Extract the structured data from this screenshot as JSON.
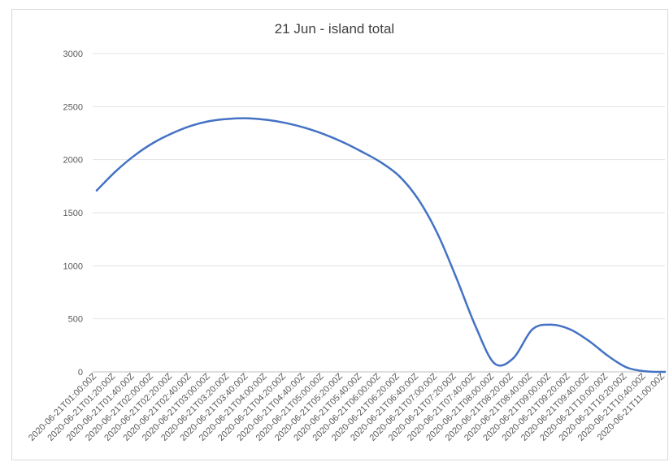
{
  "chart_data": {
    "type": "line",
    "title": "21 Jun - island total",
    "xlabel": "",
    "ylabel": "",
    "ylim": [
      0,
      3000
    ],
    "yticks": [
      0,
      500,
      1000,
      1500,
      2000,
      2500,
      3000
    ],
    "grid": "horizontal",
    "legend": "none",
    "x": [
      "2020-06-21T01:00:00Z",
      "2020-06-21T01:20:00Z",
      "2020-06-21T01:40:00Z",
      "2020-06-21T02:00:00Z",
      "2020-06-21T02:20:00Z",
      "2020-06-21T02:40:00Z",
      "2020-06-21T03:00:00Z",
      "2020-06-21T03:20:00Z",
      "2020-06-21T03:40:00Z",
      "2020-06-21T04:00:00Z",
      "2020-06-21T04:20:00Z",
      "2020-06-21T04:40:00Z",
      "2020-06-21T05:00:00Z",
      "2020-06-21T05:20:00Z",
      "2020-06-21T05:40:00Z",
      "2020-06-21T06:00:00Z",
      "2020-06-21T06:20:00Z",
      "2020-06-21T06:40:00Z",
      "2020-06-21T07:00:00Z",
      "2020-06-21T07:20:00Z",
      "2020-06-21T07:40:00Z",
      "2020-06-21T08:00:00Z",
      "2020-06-21T08:20:00Z",
      "2020-06-21T08:40:00Z",
      "2020-06-21T09:00:00Z",
      "2020-06-21T09:20:00Z",
      "2020-06-21T09:40:00Z",
      "2020-06-21T10:00:00Z",
      "2020-06-21T10:20:00Z",
      "2020-06-21T10:40:00Z",
      "2020-06-21T11:00:00Z"
    ],
    "xtick_labels": [
      "2020-06-21T01:00:00Z",
      "2020-06-21T01:20:00Z",
      "2020-06-21T01:40:00Z",
      "2020-06-21T02:00:00Z",
      "2020-06-21T02:20:00Z",
      "2020-06-21T02:40:00Z",
      "2020-06-21T03:00:00Z",
      "2020-06-21T03:20:00Z",
      "2020-06-21T03:40:00Z",
      "2020-06-21T04:00:00Z",
      "2020-06-21T04:20:00Z",
      "2020-06-21T04:40:00Z",
      "2020-06-21T05:00:00Z",
      "2020-06-21T05:20:00Z",
      "2020-06-21T05:40:00Z",
      "2020-06-21T06:00:00Z",
      "2020-06-21T06:20:00Z",
      "2020-06-21T06:40:00Z",
      "2020-06-21T07:00:00Z",
      "2020-06-21T07:20:00Z",
      "2020-06-21T07:40:00Z",
      "2020-06-21T08:00:00Z",
      "2020-06-21T08:20:00Z",
      "2020-06-21T08:40:00Z",
      "2020-06-21T09:00:00Z",
      "2020-06-21T09:20:00Z",
      "2020-06-21T09:40:00Z",
      "2020-06-21T10:00:00Z",
      "2020-06-21T10:20:00Z",
      "2020-06-21T10:40:00Z",
      "2020-06-21T11:00:00Z"
    ],
    "series": [
      {
        "color": "#4472c4",
        "values": [
          1710,
          1890,
          2040,
          2160,
          2250,
          2320,
          2365,
          2385,
          2390,
          2375,
          2345,
          2300,
          2240,
          2165,
          2075,
          1975,
          1840,
          1620,
          1300,
          880,
          430,
          80,
          130,
          400,
          445,
          400,
          290,
          150,
          40,
          5,
          0
        ]
      }
    ]
  }
}
